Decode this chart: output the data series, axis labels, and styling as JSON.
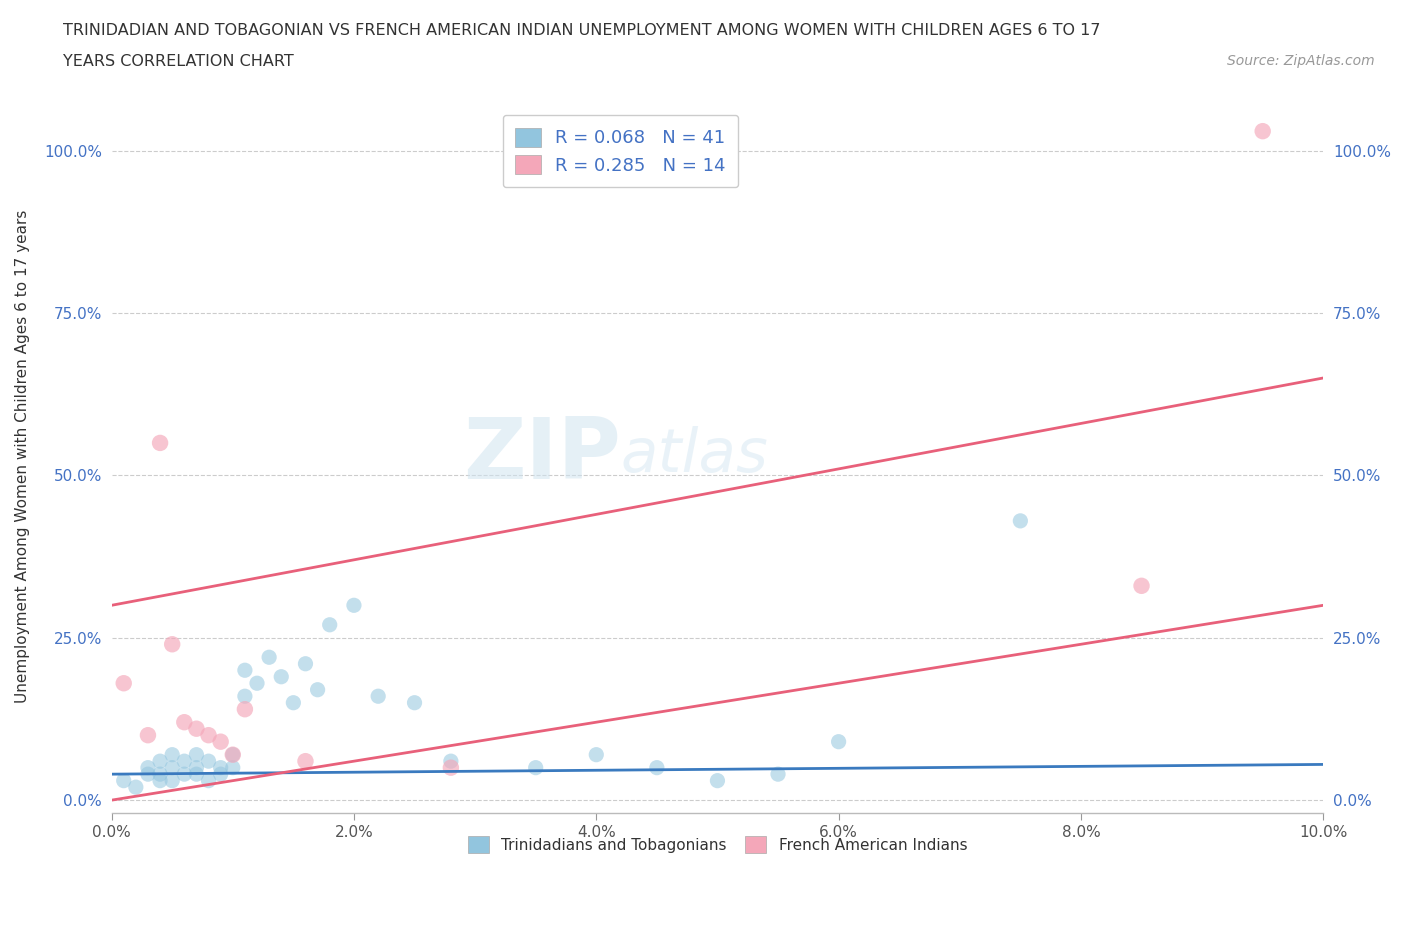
{
  "title_line1": "TRINIDADIAN AND TOBAGONIAN VS FRENCH AMERICAN INDIAN UNEMPLOYMENT AMONG WOMEN WITH CHILDREN AGES 6 TO 17",
  "title_line2": "YEARS CORRELATION CHART",
  "source_text": "Source: ZipAtlas.com",
  "ylabel": "Unemployment Among Women with Children Ages 6 to 17 years",
  "xlim": [
    0.0,
    0.1
  ],
  "ylim": [
    -0.02,
    1.08
  ],
  "xticks": [
    0.0,
    0.02,
    0.04,
    0.06,
    0.08,
    0.1
  ],
  "xticklabels": [
    "0.0%",
    "2.0%",
    "4.0%",
    "6.0%",
    "8.0%",
    "10.0%"
  ],
  "yticks": [
    0.0,
    0.25,
    0.5,
    0.75,
    1.0
  ],
  "yticklabels": [
    "0.0%",
    "25.0%",
    "50.0%",
    "75.0%",
    "100.0%"
  ],
  "blue_color": "#92c5de",
  "pink_color": "#f4a7b9",
  "blue_line_color": "#3a7abf",
  "pink_line_color": "#e8607a",
  "legend_R1": "0.068",
  "legend_N1": "41",
  "legend_R2": "0.285",
  "legend_N2": "14",
  "legend_label1": "Trinidadians and Tobagonians",
  "legend_label2": "French American Indians",
  "watermark_zip": "ZIP",
  "watermark_atlas": "atlas",
  "blue_scatter_x": [
    0.001,
    0.002,
    0.003,
    0.003,
    0.004,
    0.004,
    0.004,
    0.005,
    0.005,
    0.005,
    0.006,
    0.006,
    0.007,
    0.007,
    0.007,
    0.008,
    0.008,
    0.009,
    0.009,
    0.01,
    0.01,
    0.011,
    0.011,
    0.012,
    0.013,
    0.014,
    0.015,
    0.016,
    0.017,
    0.018,
    0.02,
    0.022,
    0.025,
    0.028,
    0.035,
    0.04,
    0.045,
    0.05,
    0.055,
    0.06,
    0.075
  ],
  "blue_scatter_y": [
    0.03,
    0.02,
    0.05,
    0.04,
    0.06,
    0.03,
    0.04,
    0.05,
    0.07,
    0.03,
    0.04,
    0.06,
    0.05,
    0.07,
    0.04,
    0.06,
    0.03,
    0.05,
    0.04,
    0.07,
    0.05,
    0.16,
    0.2,
    0.18,
    0.22,
    0.19,
    0.15,
    0.21,
    0.17,
    0.27,
    0.3,
    0.16,
    0.15,
    0.06,
    0.05,
    0.07,
    0.05,
    0.03,
    0.04,
    0.09,
    0.43
  ],
  "pink_scatter_x": [
    0.001,
    0.003,
    0.004,
    0.005,
    0.006,
    0.007,
    0.008,
    0.009,
    0.01,
    0.011,
    0.016,
    0.028,
    0.085,
    0.095
  ],
  "pink_scatter_y": [
    0.18,
    0.1,
    0.55,
    0.24,
    0.12,
    0.11,
    0.1,
    0.09,
    0.07,
    0.14,
    0.06,
    0.05,
    0.33,
    1.03
  ],
  "blue_trend_x0": 0.0,
  "blue_trend_x1": 0.1,
  "blue_trend_y0": 0.04,
  "blue_trend_y1": 0.055,
  "pink_trend_x0": 0.0,
  "pink_trend_x1": 0.1,
  "pink_trend_y0": 0.3,
  "pink_trend_y1": 0.65
}
